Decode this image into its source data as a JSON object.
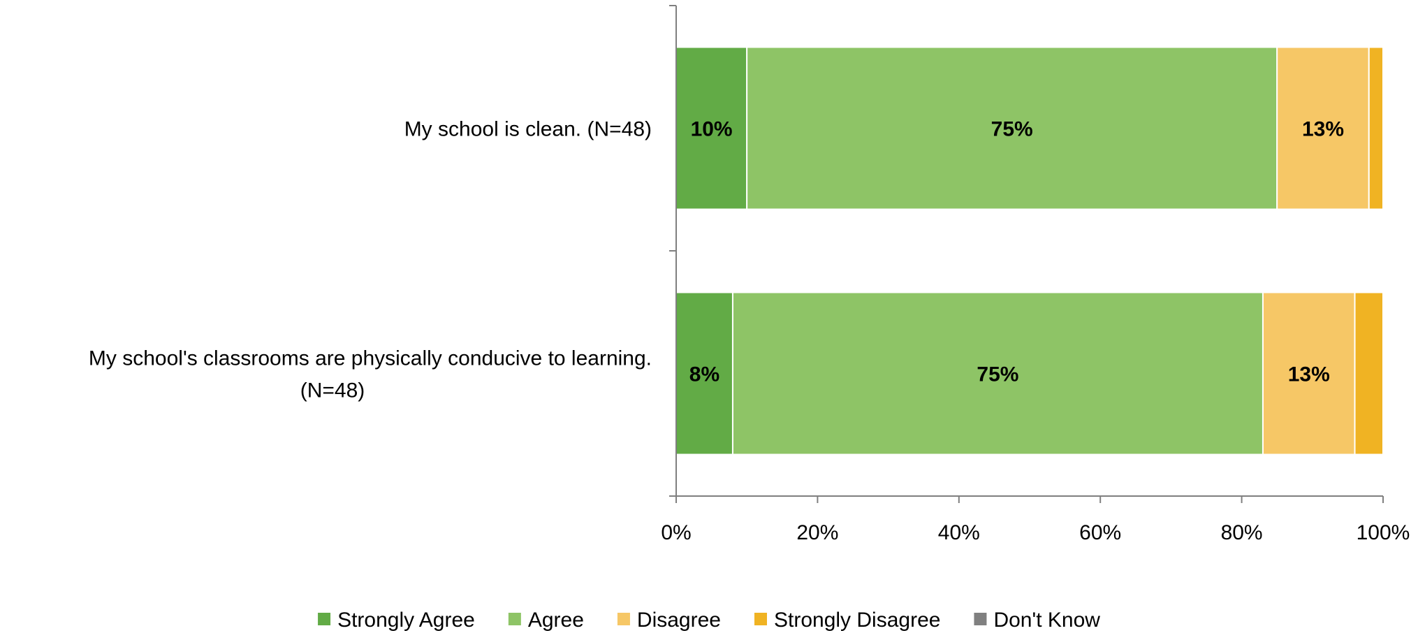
{
  "chart_data": {
    "type": "bar",
    "orientation": "horizontal",
    "stacked": true,
    "percent_stacked": true,
    "categories": [
      {
        "label_lines": [
          "My school is clean. (N=48)"
        ]
      },
      {
        "label_lines": [
          "My school's classrooms are physically conducive to learning.",
          "(N=48)"
        ]
      }
    ],
    "series": [
      {
        "name": "Strongly Agree",
        "color": "#62ab46",
        "values": [
          10,
          8
        ],
        "labels": [
          "10%",
          "8%"
        ]
      },
      {
        "name": "Agree",
        "color": "#8ec466",
        "values": [
          75,
          75
        ],
        "labels": [
          "75%",
          "75%"
        ]
      },
      {
        "name": "Disagree",
        "color": "#f6c766",
        "values": [
          13,
          13
        ],
        "labels": [
          "13%",
          "13%"
        ]
      },
      {
        "name": "Strongly Disagree",
        "color": "#f0b323",
        "values": [
          2,
          4
        ],
        "labels": [
          "",
          ""
        ]
      },
      {
        "name": "Don't Know",
        "color": "#808080",
        "values": [
          0,
          0
        ],
        "labels": [
          "",
          ""
        ]
      }
    ],
    "xlim": [
      0,
      100
    ],
    "x_ticks": [
      0,
      20,
      40,
      60,
      80,
      100
    ],
    "x_tick_labels": [
      "0%",
      "20%",
      "40%",
      "60%",
      "80%",
      "100%"
    ],
    "grid": false,
    "legend_position": "bottom"
  }
}
